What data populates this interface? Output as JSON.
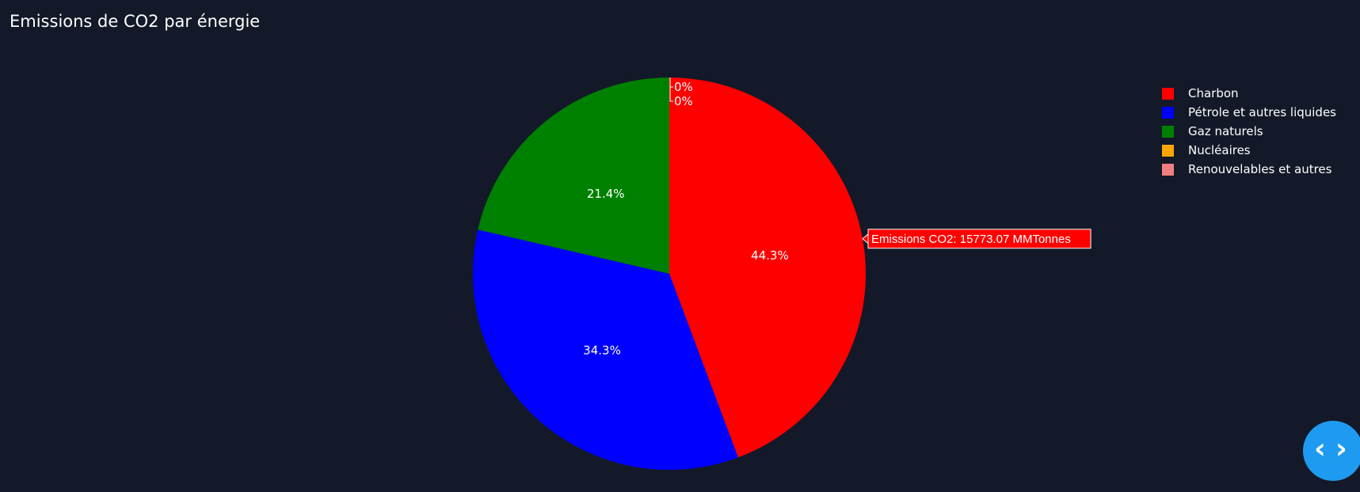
{
  "chart_data": {
    "type": "pie",
    "title": "Emissions de CO2 par énergie",
    "labels": [
      "Charbon",
      "Pétrole et autres liquides",
      "Gaz naturels",
      "Nucléaires",
      "Renouvelables et autres"
    ],
    "values": [
      15773.07,
      12212,
      7619,
      0,
      0
    ],
    "percent_labels": [
      "44.3%",
      "34.3%",
      "21.4%",
      "0%",
      "0%"
    ],
    "colors": [
      "#ff0000",
      "#0000ff",
      "#008000",
      "#ffa500",
      "#f08080"
    ],
    "legend_position": "top-right",
    "hover_tooltip": {
      "text": "Emissions CO2: 15773.07 MMTonnes",
      "slice": "Charbon"
    }
  },
  "nav_fab": {
    "icon": "code-arrows-icon",
    "left_glyph": "‹",
    "right_glyph": "›"
  }
}
